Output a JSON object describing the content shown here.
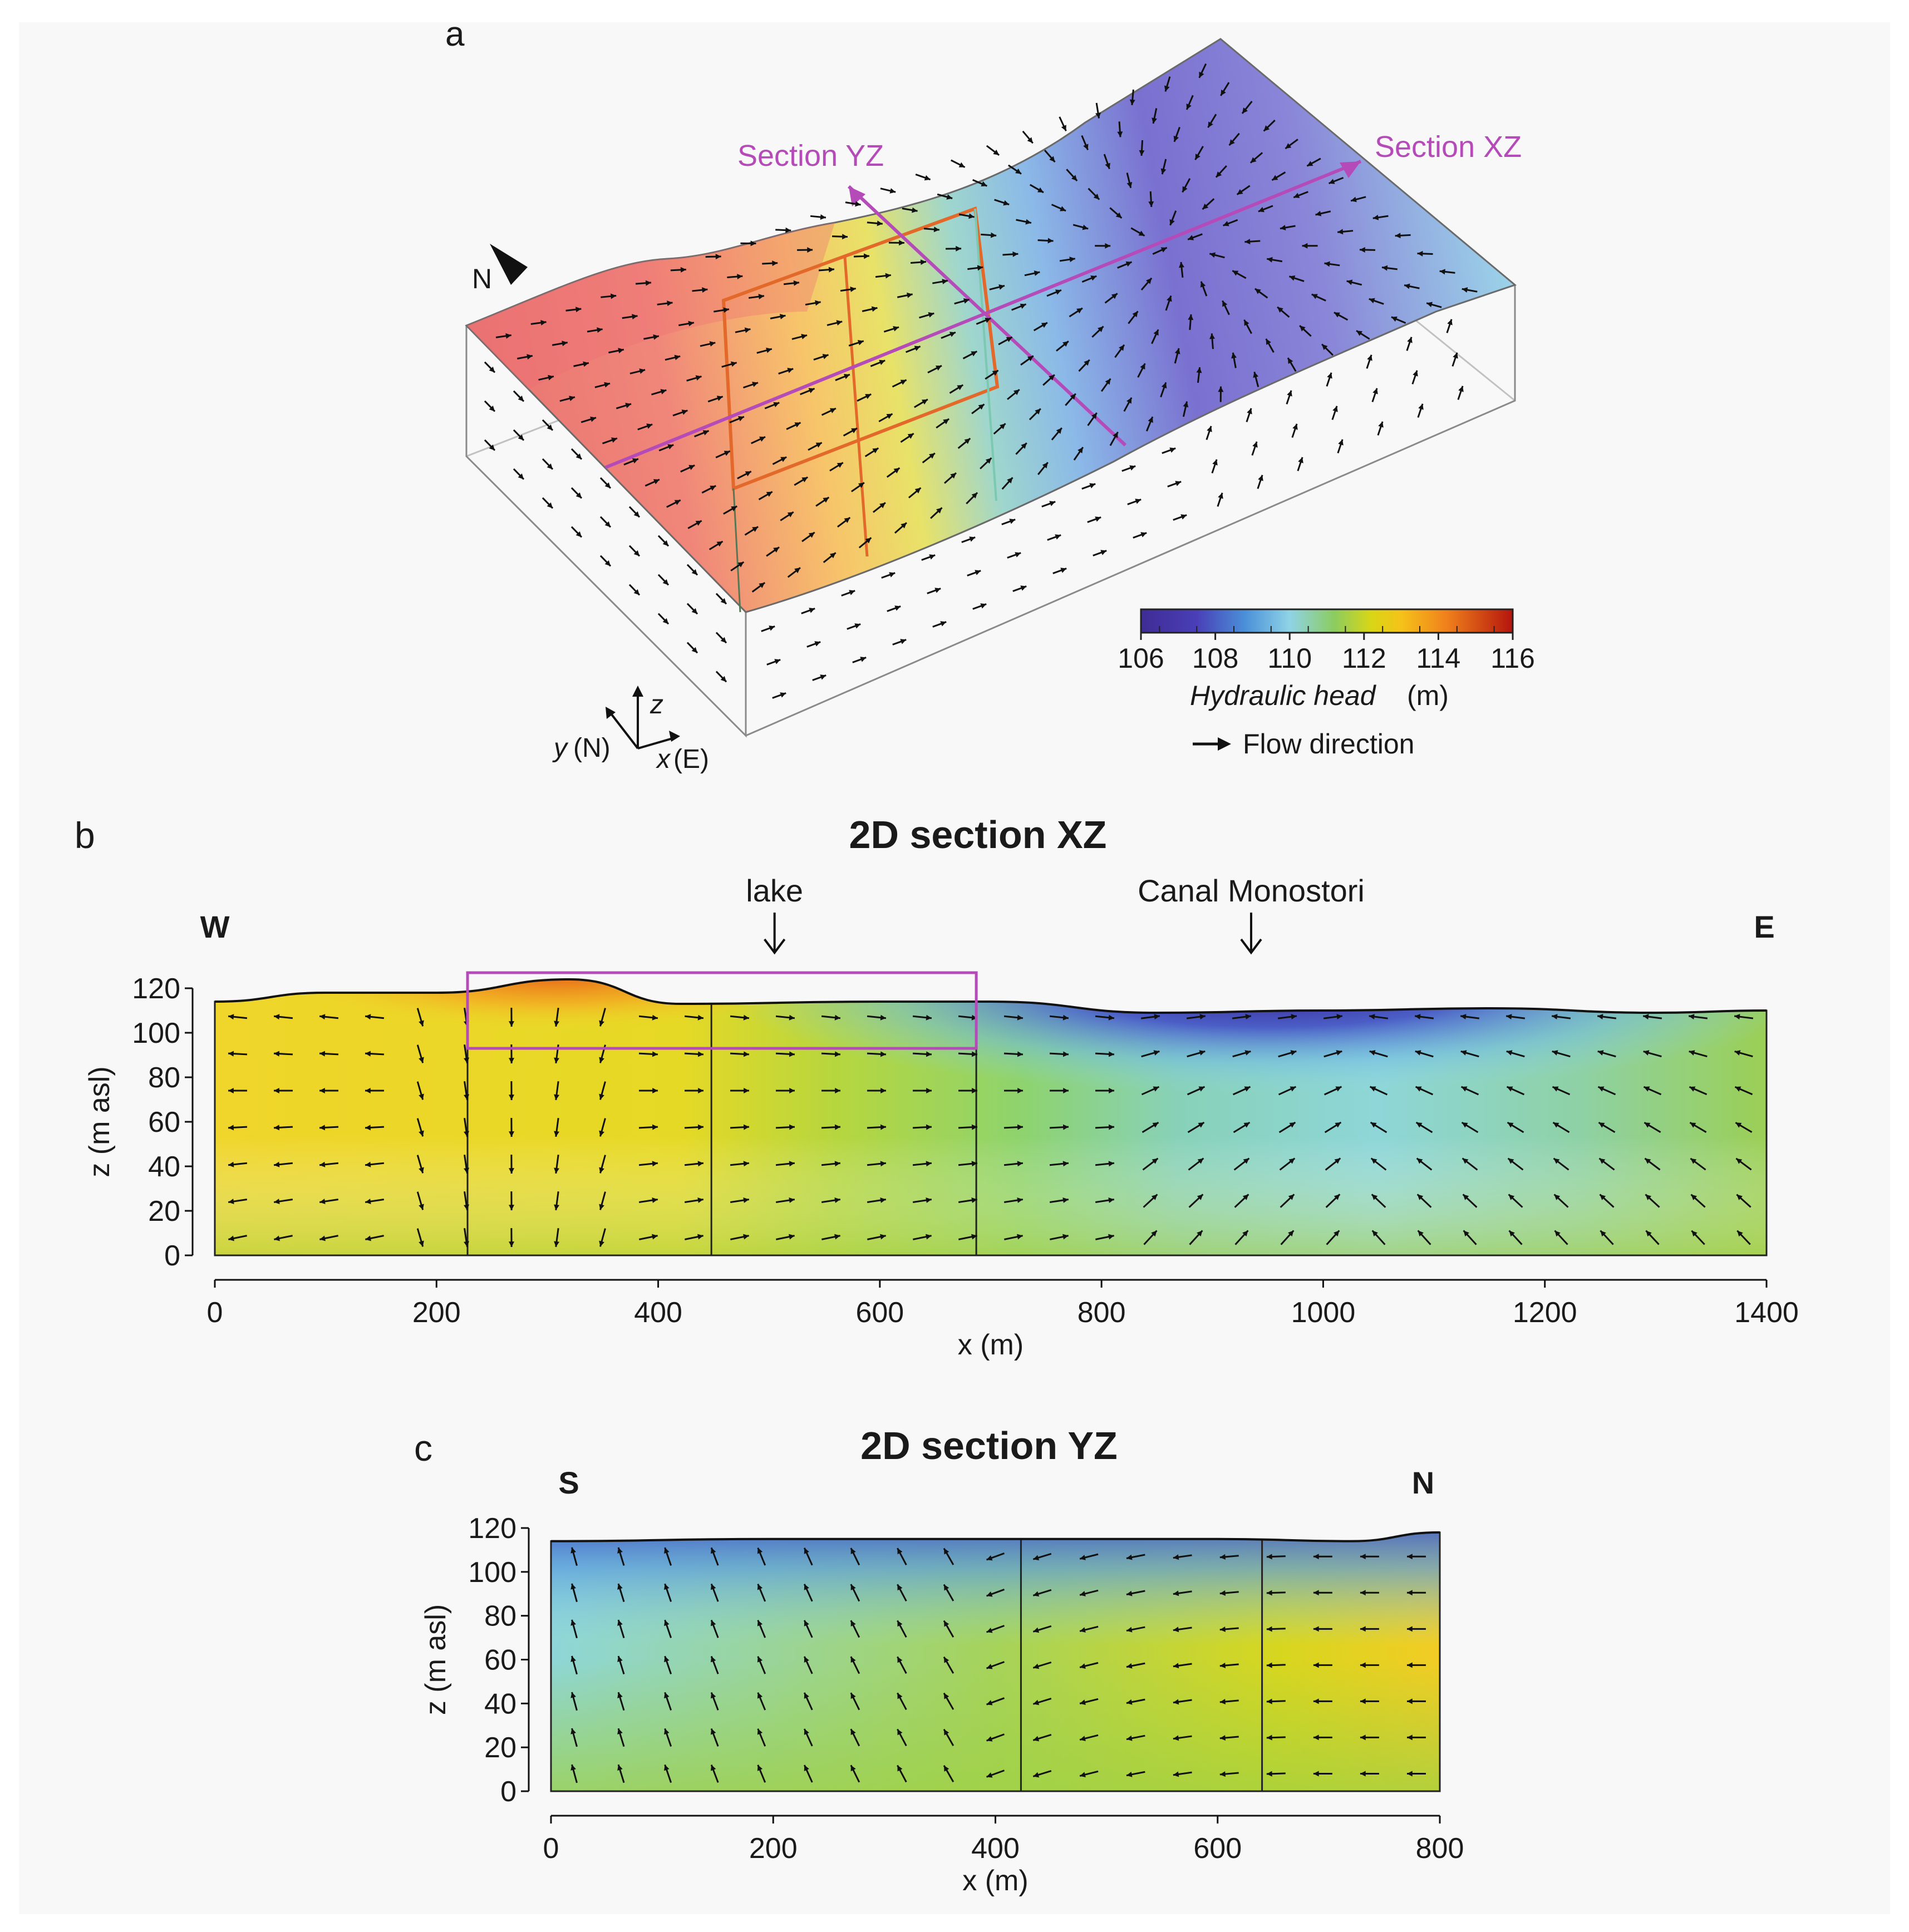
{
  "panel_a": {
    "label": "a",
    "north_label": "N",
    "section_yz_label": "Section YZ",
    "section_xz_label": "Section XZ",
    "axes": {
      "z": "z",
      "y": "y",
      "y_dir": "(N)",
      "x": "x",
      "x_dir": "(E)"
    },
    "colorbar": {
      "ticks": [
        "106",
        "108",
        "110",
        "112",
        "114",
        "116"
      ],
      "title": "Hydraulic head",
      "unit": "(m)"
    },
    "flow_legend": "Flow direction",
    "colors": {
      "section_line": "#b44bb9",
      "lake_outline": "#e3692a"
    }
  },
  "chart_data": [
    {
      "type": "heatmap",
      "panel": "b",
      "title": "2D section XZ",
      "xlabel": "x (m)",
      "ylabel": "z (m asl)",
      "xlim": [
        0,
        1400
      ],
      "ylim": [
        0,
        120
      ],
      "xticks": [
        "0",
        "200",
        "400",
        "600",
        "800",
        "1000",
        "1200",
        "1400"
      ],
      "yticks": [
        "0",
        "20",
        "40",
        "60",
        "80",
        "100",
        "120"
      ],
      "left_label": "W",
      "right_label": "E",
      "annotations": [
        "lake",
        "Canal Monostori"
      ],
      "annotation_x": [
        505,
        935
      ],
      "top_surface": {
        "x": [
          0,
          100,
          200,
          320,
          420,
          600,
          700,
          850,
          1000,
          1150,
          1300,
          1400
        ],
        "z": [
          114,
          118,
          118,
          124,
          113,
          114,
          114,
          109,
          110,
          111,
          109,
          110
        ]
      },
      "vertical_lines_x": [
        228,
        448,
        687
      ],
      "box": {
        "x": [
          228,
          687
        ],
        "z": [
          93,
          127
        ]
      },
      "head_range_m": [
        106,
        116
      ]
    },
    {
      "type": "heatmap",
      "panel": "c",
      "title": "2D section YZ",
      "xlabel": "x (m)",
      "ylabel": "z (m asl)",
      "xlim": [
        0,
        800
      ],
      "ylim": [
        0,
        120
      ],
      "xticks": [
        "0",
        "200",
        "400",
        "600",
        "800"
      ],
      "yticks": [
        "0",
        "20",
        "40",
        "60",
        "80",
        "100",
        "120"
      ],
      "left_label": "S",
      "right_label": "N",
      "top_surface": {
        "x": [
          0,
          200,
          400,
          600,
          720,
          800
        ],
        "z": [
          114,
          115,
          115,
          115,
          114,
          118
        ]
      },
      "vertical_lines_x": [
        423,
        640
      ],
      "head_range_m": [
        106,
        116
      ]
    }
  ],
  "panel_labels": {
    "b": "b",
    "c": "c"
  }
}
